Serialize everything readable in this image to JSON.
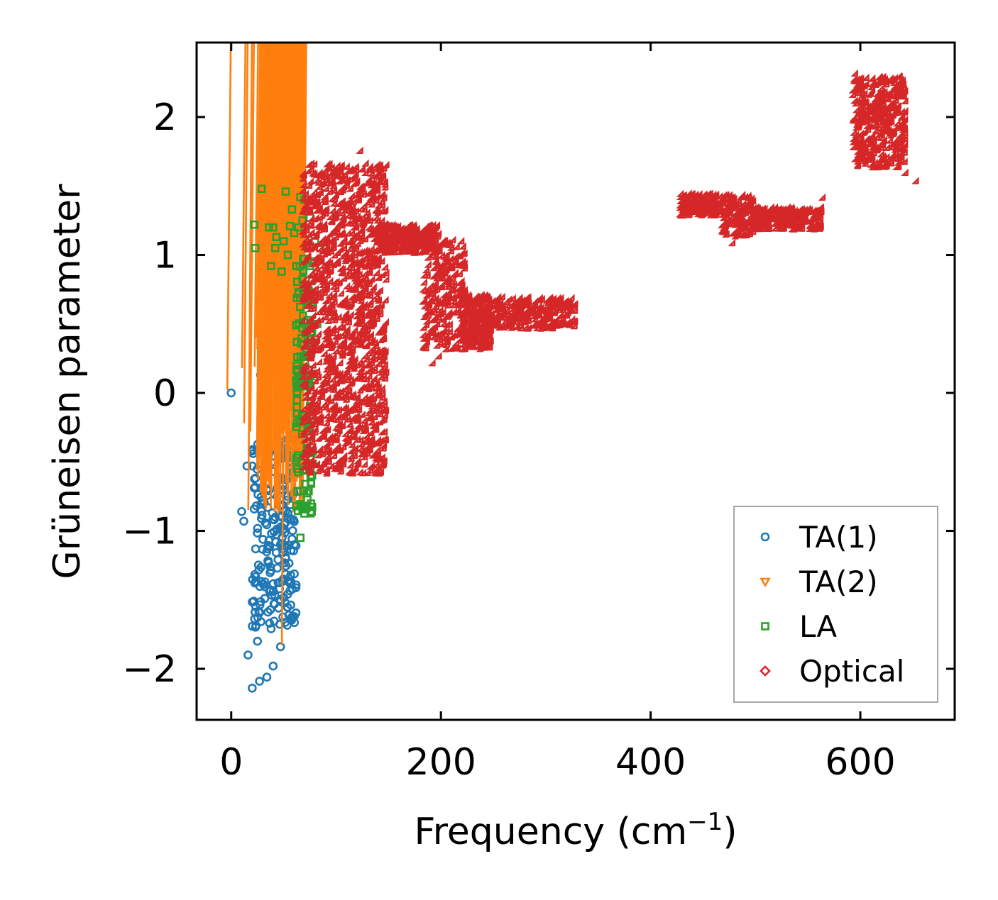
{
  "chart_data": {
    "type": "scatter",
    "title": "",
    "xlabel": "Frequency (cm",
    "xlabel_sup": "−1",
    "xlabel_close": ")",
    "ylabel": "Grüneisen parameter",
    "xlim": [
      -33,
      690
    ],
    "ylim": [
      -2.37,
      2.54
    ],
    "xticks": [
      {
        "value": 0,
        "label": "0"
      },
      {
        "value": 200,
        "label": "200"
      },
      {
        "value": 400,
        "label": "400"
      },
      {
        "value": 600,
        "label": "600"
      }
    ],
    "yticks": [
      {
        "value": -2,
        "label": "−2"
      },
      {
        "value": -1,
        "label": "−1"
      },
      {
        "value": 0,
        "label": "0"
      },
      {
        "value": 1,
        "label": "1"
      },
      {
        "value": 2,
        "label": "2"
      }
    ],
    "legend_position": "lower-right",
    "series": [
      {
        "name": "TA(1)",
        "marker": "circle",
        "color": "#1f77b4",
        "points": [
          [
            0,
            0
          ],
          [
            10,
            -0.86
          ],
          [
            12,
            -0.93
          ],
          [
            15,
            -0.53
          ],
          [
            16,
            -1.9
          ],
          [
            20,
            -2.14
          ],
          [
            22,
            -0.69
          ],
          [
            24,
            -1.37
          ],
          [
            25,
            -1.8
          ],
          [
            27,
            -2.09
          ],
          [
            28,
            0.13
          ],
          [
            30,
            -0.78
          ],
          [
            32,
            -1.49
          ],
          [
            34,
            -2.06
          ],
          [
            35,
            -0.4
          ],
          [
            36,
            -1.07
          ],
          [
            38,
            -1.71
          ],
          [
            40,
            -1.98
          ],
          [
            42,
            -0.9
          ],
          [
            44,
            -1.27
          ],
          [
            45,
            -0.63
          ],
          [
            46,
            -1.42
          ],
          [
            47,
            -1.84
          ],
          [
            48,
            -0.46
          ],
          [
            50,
            0.32
          ],
          [
            50,
            -0.99
          ],
          [
            52,
            -1.2
          ],
          [
            54,
            -0.75
          ],
          [
            55,
            -1.61
          ],
          [
            56,
            -1.38
          ],
          [
            58,
            0.08
          ],
          [
            58,
            -0.3
          ],
          [
            60,
            -1.1
          ]
        ],
        "clusters": [
          {
            "x": [
              20,
              62
            ],
            "y": [
              -1.7,
              -0.3
            ],
            "count": 220
          }
        ]
      },
      {
        "name": "TA(2)",
        "marker": "triangle-down",
        "color": "#ff7f0e",
        "points": [
          [
            0,
            0
          ],
          [
            14,
            0.16
          ],
          [
            16,
            -0.24
          ],
          [
            20,
            -0.87
          ],
          [
            22,
            -0.3
          ],
          [
            26,
            0.17
          ],
          [
            28,
            0.38
          ],
          [
            30,
            -0.5
          ],
          [
            32,
            -0.27
          ],
          [
            35,
            0.72
          ],
          [
            38,
            0.66
          ],
          [
            40,
            0.32
          ],
          [
            42,
            -0.73
          ],
          [
            45,
            0.52
          ],
          [
            48,
            -0.1
          ],
          [
            50,
            0.53
          ],
          [
            52,
            -1.85
          ],
          [
            55,
            0.46
          ],
          [
            58,
            0.6
          ],
          [
            60,
            0.13
          ],
          [
            62,
            -0.55
          ],
          [
            64,
            0.31
          ]
        ],
        "clusters": [
          {
            "x": [
              28,
              72
            ],
            "y": [
              -0.9,
              0.55
            ],
            "count": 200
          }
        ]
      },
      {
        "name": "LA",
        "marker": "square",
        "color": "#2ca02c",
        "points": [
          [
            22,
            1.22
          ],
          [
            23,
            1.05
          ],
          [
            29,
            1.48
          ],
          [
            36,
            1.2
          ],
          [
            38,
            0.92
          ],
          [
            40,
            1.2
          ],
          [
            42,
            1.05
          ],
          [
            43,
            1.13
          ],
          [
            48,
            0.88
          ],
          [
            50,
            1.1
          ],
          [
            52,
            1.46
          ],
          [
            54,
            1.0
          ],
          [
            56,
            1.21
          ],
          [
            58,
            1.33
          ],
          [
            60,
            1.16
          ],
          [
            62,
            0.92
          ],
          [
            64,
            1.2
          ],
          [
            66,
            1.42
          ],
          [
            68,
            1.25
          ],
          [
            70,
            1.4
          ],
          [
            72,
            1.06
          ],
          [
            75,
            1.27
          ],
          [
            80,
            1.1
          ],
          [
            85,
            1.05
          ],
          [
            82,
            0.5
          ],
          [
            78,
            0.65
          ],
          [
            66,
            -1.05
          ]
        ],
        "clusters": [
          {
            "x": [
              62,
              78
            ],
            "y": [
              -0.9,
              1.0
            ],
            "count": 150
          }
        ]
      },
      {
        "name": "Optical",
        "marker": "diamond",
        "color": "#d62728",
        "points": [
          [
            125,
            1.74
          ],
          [
            100,
            1.6
          ],
          [
            190,
            0.6
          ],
          [
            194,
            0.2
          ],
          [
            200,
            0.25
          ],
          [
            240,
            0.35
          ],
          [
            330,
            0.5
          ],
          [
            566,
            1.4
          ],
          [
            480,
            1.07
          ],
          [
            655,
            1.52
          ],
          [
            645,
            1.58
          ],
          [
            597,
            2.3
          ]
        ],
        "clusters": [
          {
            "x": [
              70,
              150
            ],
            "y": [
              -0.6,
              1.65
            ],
            "count": 1400
          },
          {
            "x": [
              140,
              200
            ],
            "y": [
              1.0,
              1.2
            ],
            "count": 300
          },
          {
            "x": [
              185,
              225
            ],
            "y": [
              0.3,
              1.1
            ],
            "count": 250
          },
          {
            "x": [
              220,
              250
            ],
            "y": [
              0.3,
              0.7
            ],
            "count": 250
          },
          {
            "x": [
              250,
              330
            ],
            "y": [
              0.45,
              0.68
            ],
            "count": 280
          },
          {
            "x": [
              430,
              470
            ],
            "y": [
              1.27,
              1.43
            ],
            "count": 180
          },
          {
            "x": [
              470,
              500
            ],
            "y": [
              1.12,
              1.42
            ],
            "count": 150
          },
          {
            "x": [
              500,
              565
            ],
            "y": [
              1.17,
              1.33
            ],
            "count": 250
          },
          {
            "x": [
              595,
              645
            ],
            "y": [
              1.62,
              2.28
            ],
            "count": 400
          }
        ]
      }
    ]
  }
}
